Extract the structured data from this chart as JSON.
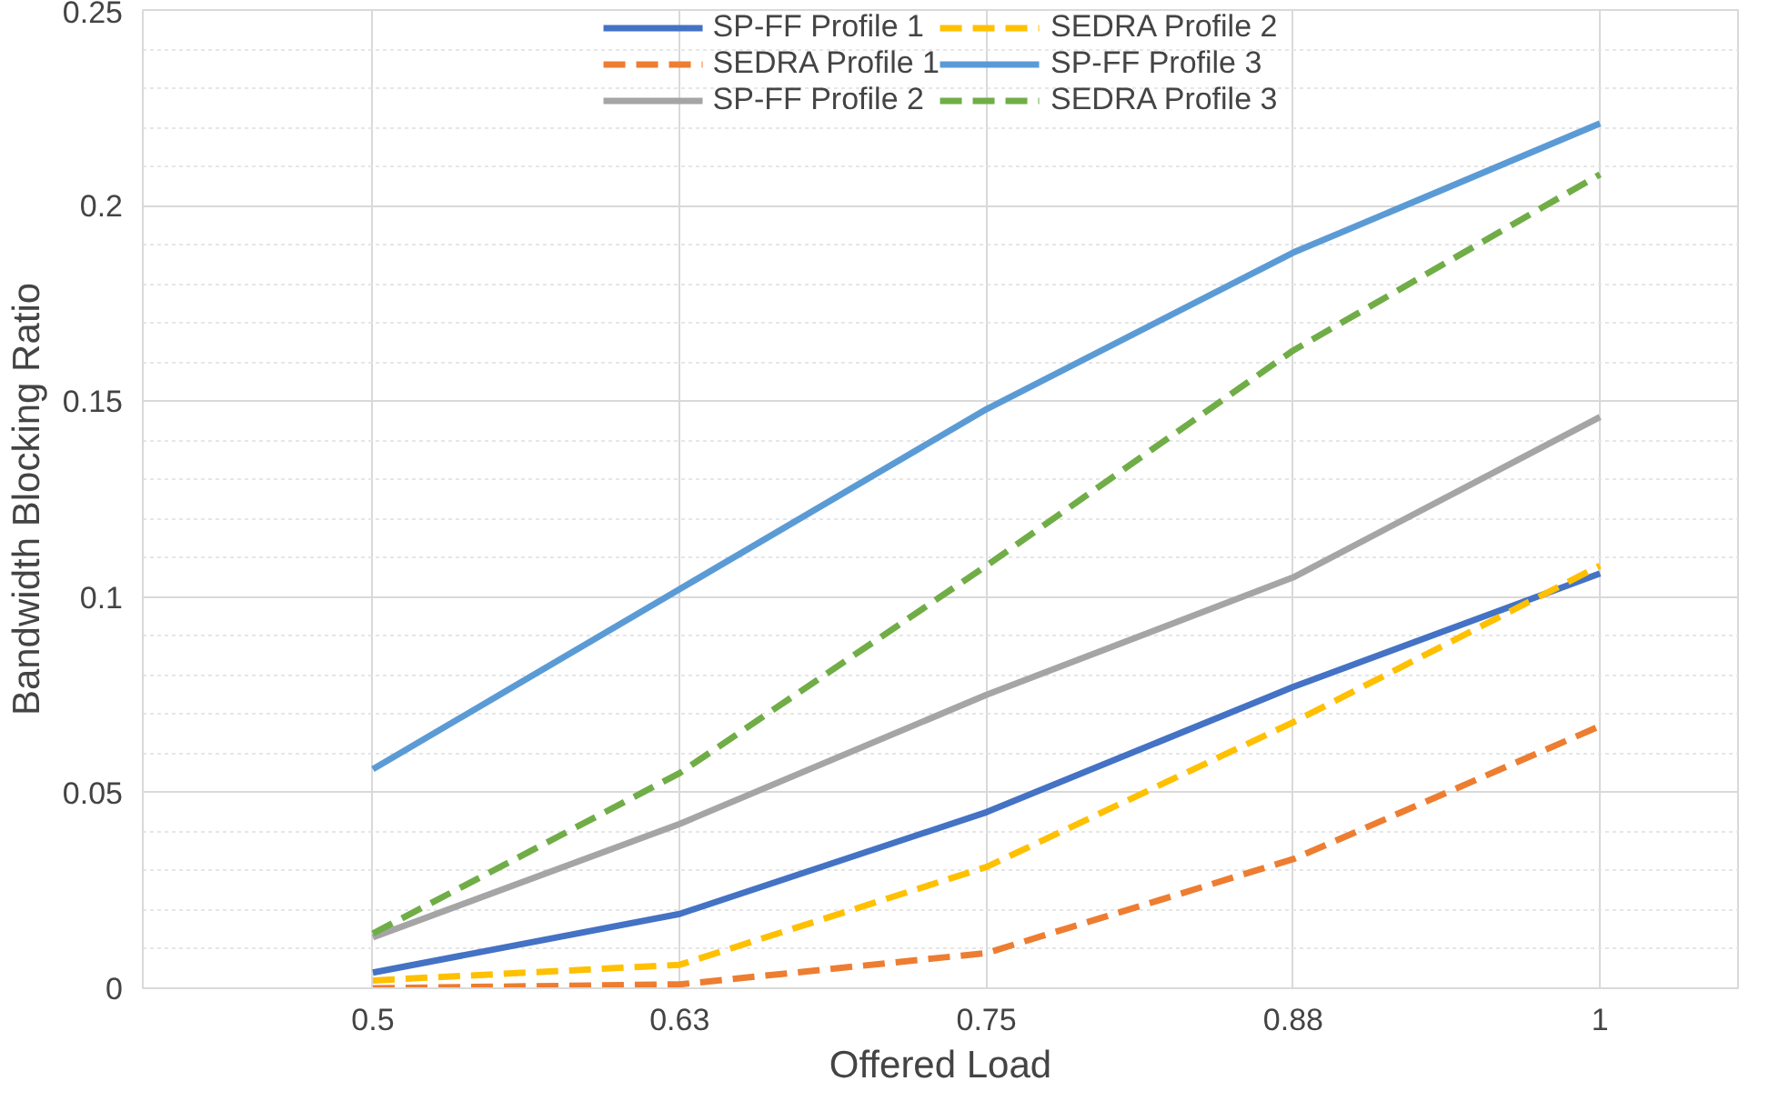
{
  "chart_data": {
    "type": "line",
    "xlabel": "Offered Load",
    "ylabel": "Bandwidth Blocking Ratio",
    "categories": [
      "0.5",
      "0.63",
      "0.75",
      "0.88",
      "1"
    ],
    "ylim": [
      0,
      0.25
    ],
    "yticks": [
      0,
      0.05,
      0.1,
      0.15,
      0.2,
      0.25
    ],
    "grid": true,
    "legend": "top",
    "marker": "none",
    "series": [
      {
        "name": "SP-FF Profile 1",
        "color": "#4472c4",
        "line_style": "solid",
        "values": [
          0.004,
          0.019,
          0.045,
          0.077,
          0.106
        ]
      },
      {
        "name": "SEDRA Profile 1",
        "color": "#ed7d31",
        "line_style": "dashed",
        "values": [
          0.0,
          0.001,
          0.009,
          0.033,
          0.067
        ]
      },
      {
        "name": "SP-FF Profile 2",
        "color": "#a5a5a5",
        "line_style": "solid",
        "values": [
          0.013,
          0.042,
          0.075,
          0.105,
          0.146
        ]
      },
      {
        "name": "SEDRA Profile 2",
        "color": "#ffc000",
        "line_style": "dashed",
        "values": [
          0.002,
          0.006,
          0.031,
          0.068,
          0.108
        ]
      },
      {
        "name": "SP-FF Profile 3",
        "color": "#5b9bd5",
        "line_style": "solid",
        "values": [
          0.056,
          0.102,
          0.148,
          0.188,
          0.221
        ]
      },
      {
        "name": "SEDRA Profile 3",
        "color": "#70ad47",
        "line_style": "dashed",
        "values": [
          0.014,
          0.055,
          0.108,
          0.163,
          0.208
        ]
      }
    ]
  }
}
